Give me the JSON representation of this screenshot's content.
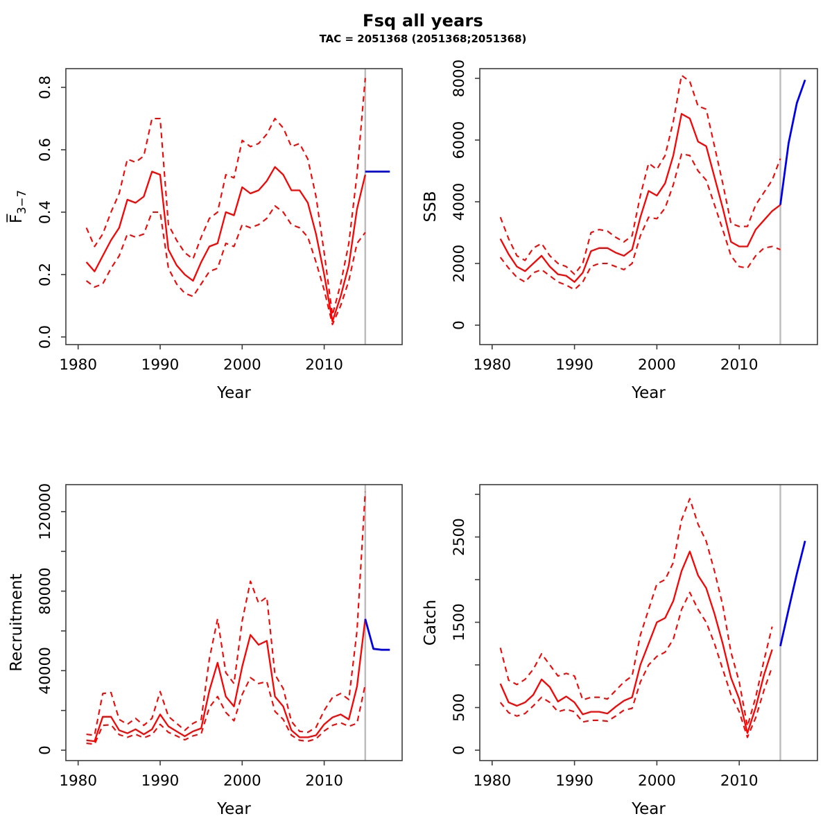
{
  "header": {
    "title": "Fsq all years",
    "subtitle": "TAC = 2051368 (2051368;2051368)"
  },
  "colors": {
    "median": "#ff0000",
    "interval": "#ff0000",
    "forecast": "#0000ee",
    "divider": "#bdbdbd",
    "frame": "#3c3c3c",
    "text": "#000000"
  },
  "x_axis": {
    "label": "Year",
    "xlim": [
      1978.5,
      2019.5
    ],
    "ticks": [
      1980,
      1990,
      2000,
      2010
    ],
    "divider_year": 2015
  },
  "chart_data": [
    {
      "id": "fbar",
      "type": "line",
      "title": "",
      "xlabel": "Year",
      "ylabel": "F̅",
      "ylabel_sub": "3−7",
      "ylim": [
        -0.0244,
        0.86
      ],
      "yticks": [
        0,
        0.2,
        0.4,
        0.6,
        0.8
      ],
      "ytick_labels": [
        "0.0",
        "0.2",
        "0.4",
        "0.6",
        "0.8"
      ],
      "grid": false,
      "legend": "none",
      "years": [
        1981,
        1982,
        1983,
        1984,
        1985,
        1986,
        1987,
        1988,
        1989,
        1990,
        1991,
        1992,
        1993,
        1994,
        1995,
        1996,
        1997,
        1998,
        1999,
        2000,
        2001,
        2002,
        2003,
        2004,
        2005,
        2006,
        2007,
        2008,
        2009,
        2010,
        2011,
        2012,
        2013,
        2014,
        2015
      ],
      "series": [
        {
          "name": "median",
          "role": "median",
          "dash": false,
          "color": "#ff0000",
          "values": [
            0.24,
            0.21,
            0.26,
            0.31,
            0.35,
            0.44,
            0.43,
            0.45,
            0.53,
            0.52,
            0.28,
            0.23,
            0.2,
            0.18,
            0.24,
            0.29,
            0.3,
            0.4,
            0.39,
            0.48,
            0.46,
            0.47,
            0.5,
            0.545,
            0.52,
            0.47,
            0.47,
            0.43,
            0.33,
            0.2,
            0.05,
            0.13,
            0.23,
            0.41,
            0.52
          ]
        },
        {
          "name": "upper-ci",
          "role": "interval",
          "dash": true,
          "color": "#ff0000",
          "values": [
            0.35,
            0.29,
            0.33,
            0.4,
            0.46,
            0.57,
            0.56,
            0.58,
            0.7,
            0.7,
            0.36,
            0.31,
            0.27,
            0.25,
            0.32,
            0.38,
            0.4,
            0.52,
            0.51,
            0.63,
            0.61,
            0.62,
            0.65,
            0.7,
            0.67,
            0.61,
            0.62,
            0.57,
            0.45,
            0.27,
            0.07,
            0.17,
            0.3,
            0.52,
            0.83
          ]
        },
        {
          "name": "lower-ci",
          "role": "interval",
          "dash": true,
          "color": "#ff0000",
          "values": [
            0.18,
            0.16,
            0.17,
            0.22,
            0.26,
            0.33,
            0.32,
            0.33,
            0.4,
            0.4,
            0.22,
            0.17,
            0.14,
            0.13,
            0.17,
            0.21,
            0.22,
            0.3,
            0.29,
            0.36,
            0.35,
            0.36,
            0.38,
            0.42,
            0.4,
            0.36,
            0.35,
            0.32,
            0.24,
            0.15,
            0.04,
            0.1,
            0.18,
            0.3,
            0.335
          ]
        },
        {
          "name": "forecast",
          "role": "forecast",
          "dash": false,
          "color": "#0000ee",
          "years": [
            2015,
            2016,
            2017,
            2018
          ],
          "values": [
            0.53,
            0.53,
            0.53,
            0.53
          ]
        }
      ]
    },
    {
      "id": "ssb",
      "type": "line",
      "title": "",
      "xlabel": "Year",
      "ylabel": "SSB",
      "ylabel_sub": "",
      "ylim": [
        -629,
        8315
      ],
      "yticks": [
        0,
        2000,
        4000,
        6000,
        8000
      ],
      "ytick_labels": [
        "0",
        "2000",
        "4000",
        "6000",
        "8000"
      ],
      "grid": false,
      "legend": "none",
      "years": [
        1981,
        1982,
        1983,
        1984,
        1985,
        1986,
        1987,
        1988,
        1989,
        1990,
        1991,
        1992,
        1993,
        1994,
        1995,
        1996,
        1997,
        1998,
        1999,
        2000,
        2001,
        2002,
        2003,
        2004,
        2005,
        2006,
        2007,
        2008,
        2009,
        2010,
        2011,
        2012,
        2013,
        2014,
        2015
      ],
      "series": [
        {
          "name": "median",
          "role": "median",
          "dash": false,
          "color": "#ff0000",
          "values": [
            2800,
            2300,
            1900,
            1750,
            2000,
            2250,
            1900,
            1650,
            1600,
            1400,
            1700,
            2400,
            2500,
            2500,
            2350,
            2250,
            2450,
            3500,
            4350,
            4200,
            4600,
            5500,
            6850,
            6700,
            5950,
            5800,
            4800,
            3800,
            2700,
            2550,
            2550,
            3100,
            3400,
            3700,
            3900
          ]
        },
        {
          "name": "upper-ci",
          "role": "interval",
          "dash": true,
          "color": "#ff0000",
          "values": [
            3500,
            2800,
            2250,
            2100,
            2500,
            2650,
            2250,
            2000,
            1900,
            1650,
            2000,
            3000,
            3100,
            3050,
            2850,
            2700,
            2900,
            4200,
            5250,
            5050,
            5500,
            6600,
            8100,
            7900,
            7100,
            7000,
            5800,
            4600,
            3300,
            3200,
            3200,
            3900,
            4300,
            4700,
            5400
          ]
        },
        {
          "name": "lower-ci",
          "role": "interval",
          "dash": true,
          "color": "#ff0000",
          "values": [
            2200,
            1850,
            1550,
            1400,
            1700,
            1800,
            1600,
            1400,
            1300,
            1150,
            1400,
            1900,
            2000,
            2000,
            1900,
            1800,
            2000,
            2900,
            3500,
            3450,
            3800,
            4550,
            5550,
            5500,
            5000,
            4700,
            3900,
            3100,
            2250,
            1900,
            1850,
            2250,
            2500,
            2550,
            2450
          ]
        },
        {
          "name": "forecast",
          "role": "forecast",
          "dash": false,
          "color": "#0000ee",
          "years": [
            2015,
            2016,
            2017,
            2018
          ],
          "values": [
            3900,
            5900,
            7200,
            7950
          ]
        }
      ]
    },
    {
      "id": "recruitment",
      "type": "line",
      "title": "",
      "xlabel": "Year",
      "ylabel": "Recruitment",
      "ylabel_sub": "",
      "ylim": [
        -5231,
        133566
      ],
      "yticks": [
        0,
        20000,
        40000,
        60000,
        80000,
        100000,
        120000
      ],
      "ytick_labels": [
        "0",
        "",
        "40000",
        "",
        "80000",
        "",
        "120000"
      ],
      "grid": false,
      "legend": "none",
      "years": [
        1981,
        1982,
        1983,
        1984,
        1985,
        1986,
        1987,
        1988,
        1989,
        1990,
        1991,
        1992,
        1993,
        1994,
        1995,
        1996,
        1997,
        1998,
        1999,
        2000,
        2001,
        2002,
        2003,
        2004,
        2005,
        2006,
        2007,
        2008,
        2009,
        2010,
        2011,
        2012,
        2013,
        2014,
        2015
      ],
      "series": [
        {
          "name": "median",
          "role": "median",
          "dash": false,
          "color": "#ff0000",
          "values": [
            5000,
            4500,
            16800,
            16800,
            10000,
            8500,
            10500,
            8000,
            10500,
            18000,
            12000,
            9500,
            7000,
            9500,
            11000,
            30000,
            44000,
            27000,
            22000,
            42000,
            58000,
            53000,
            55000,
            27000,
            22000,
            10000,
            6500,
            6500,
            7500,
            13000,
            16500,
            18000,
            15500,
            32000,
            66000
          ]
        },
        {
          "name": "upper-ci",
          "role": "interval",
          "dash": true,
          "color": "#ff0000",
          "values": [
            8000,
            7500,
            28500,
            29000,
            15500,
            13000,
            16000,
            12500,
            16000,
            29500,
            17000,
            13500,
            10000,
            13500,
            15500,
            46000,
            66000,
            39000,
            33500,
            65000,
            85000,
            74000,
            77000,
            38000,
            31000,
            14500,
            9500,
            9000,
            11500,
            20000,
            26500,
            28500,
            25500,
            60000,
            130000
          ]
        },
        {
          "name": "lower-ci",
          "role": "interval",
          "dash": true,
          "color": "#ff0000",
          "values": [
            3500,
            3000,
            12500,
            12800,
            7800,
            6500,
            8000,
            6200,
            7800,
            13000,
            9000,
            7200,
            5200,
            7200,
            8300,
            21500,
            27000,
            19000,
            14800,
            28000,
            36500,
            33500,
            34500,
            19500,
            15500,
            7500,
            5000,
            4500,
            5700,
            9700,
            12500,
            13800,
            12000,
            13500,
            33000
          ]
        },
        {
          "name": "forecast",
          "role": "forecast",
          "dash": false,
          "color": "#0000ee",
          "years": [
            2015,
            2016,
            2017,
            2018
          ],
          "values": [
            66000,
            51000,
            50500,
            50500
          ]
        }
      ]
    },
    {
      "id": "catch",
      "type": "line",
      "title": "",
      "xlabel": "Year",
      "ylabel": "Catch",
      "ylabel_sub": "",
      "ylim": [
        -122,
        3114
      ],
      "yticks": [
        0,
        500,
        1000,
        1500,
        2000,
        2500,
        3000
      ],
      "ytick_labels": [
        "0",
        "500",
        "",
        "1500",
        "",
        "2500",
        ""
      ],
      "grid": false,
      "legend": "none",
      "years": [
        1981,
        1982,
        1983,
        1984,
        1985,
        1986,
        1987,
        1988,
        1989,
        1990,
        1991,
        1992,
        1993,
        1994,
        1995,
        1996,
        1997,
        1998,
        1999,
        2000,
        2001,
        2002,
        2003,
        2004,
        2005,
        2006,
        2007,
        2008,
        2009,
        2010,
        2011,
        2012,
        2013,
        2014
      ],
      "series": [
        {
          "name": "median",
          "role": "median",
          "dash": false,
          "color": "#ff0000",
          "values": [
            780,
            560,
            520,
            560,
            650,
            830,
            740,
            570,
            630,
            560,
            420,
            450,
            450,
            430,
            510,
            580,
            620,
            1000,
            1250,
            1500,
            1550,
            1750,
            2100,
            2330,
            2050,
            1900,
            1600,
            1250,
            850,
            600,
            200,
            500,
            880,
            1180
          ]
        },
        {
          "name": "upper-ci",
          "role": "interval",
          "dash": true,
          "color": "#ff0000",
          "values": [
            1200,
            820,
            770,
            830,
            950,
            1130,
            1000,
            870,
            900,
            870,
            590,
            620,
            620,
            600,
            700,
            800,
            870,
            1350,
            1650,
            1950,
            2000,
            2200,
            2700,
            2950,
            2650,
            2450,
            2100,
            1700,
            1150,
            800,
            280,
            620,
            1050,
            1450
          ]
        },
        {
          "name": "lower-ci",
          "role": "interval",
          "dash": true,
          "color": "#ff0000",
          "values": [
            560,
            440,
            400,
            430,
            520,
            620,
            560,
            450,
            480,
            450,
            330,
            350,
            350,
            340,
            400,
            470,
            490,
            800,
            1000,
            1100,
            1150,
            1300,
            1650,
            1850,
            1650,
            1500,
            1250,
            950,
            650,
            450,
            150,
            380,
            700,
            980
          ]
        },
        {
          "name": "forecast",
          "role": "forecast",
          "dash": false,
          "color": "#0000ee",
          "years": [
            2015,
            2016,
            2017,
            2018
          ],
          "values": [
            1220,
            1650,
            2070,
            2455
          ]
        }
      ]
    }
  ]
}
